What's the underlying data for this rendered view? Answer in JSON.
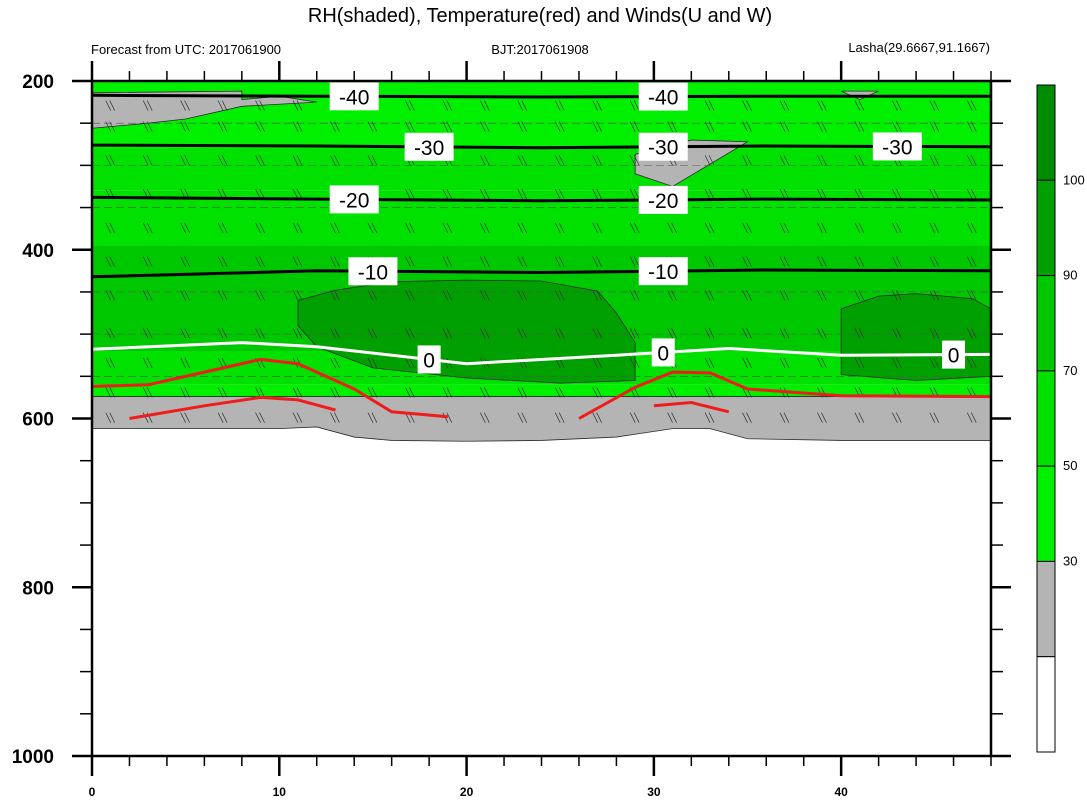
{
  "chart_data": {
    "type": "heatmap",
    "title": "RH(shaded), Temperature(red) and Winds(U and W)",
    "subtitle_left": "Forecast from UTC: 2017061900",
    "subtitle_center": "BJT:2017061908",
    "subtitle_right": "Lasha(29.6667,91.1667)",
    "x_ticks": [
      "0",
      "10",
      "20",
      "30",
      "40"
    ],
    "x_range": [
      0,
      48
    ],
    "y_ticks": [
      "200",
      "400",
      "600",
      "800",
      "1000"
    ],
    "y_range": [
      200,
      1000
    ],
    "y_reversed": true,
    "colorbar": {
      "ticks": [
        "30",
        "50",
        "70",
        "90",
        "100"
      ],
      "colors": [
        "#ffffff",
        "#b4b4b4",
        "#00f000",
        "#00e100",
        "#00c800",
        "#00a000",
        "#008c00"
      ]
    },
    "rh_regions": [
      {
        "name": "surface-gray",
        "color": "#b4b4b4",
        "points": [
          [
            0,
            612
          ],
          [
            10,
            612
          ],
          [
            12,
            610
          ],
          [
            14,
            622
          ],
          [
            16,
            626
          ],
          [
            20,
            627
          ],
          [
            24,
            626
          ],
          [
            28,
            622
          ],
          [
            31,
            612
          ],
          [
            33,
            612
          ],
          [
            35,
            624
          ],
          [
            40,
            626
          ],
          [
            48,
            626
          ],
          [
            48,
            574
          ],
          [
            0,
            574
          ]
        ]
      },
      {
        "name": "upper-gray-left",
        "color": "#b4b4b4",
        "points": [
          [
            0,
            214
          ],
          [
            8,
            212
          ],
          [
            8,
            222
          ],
          [
            10,
            218
          ],
          [
            12,
            225
          ],
          [
            8,
            230
          ],
          [
            5,
            245
          ],
          [
            3,
            250
          ],
          [
            0,
            256
          ]
        ]
      },
      {
        "name": "upper-gray-right",
        "color": "#b4b4b4",
        "points": [
          [
            29,
            287
          ],
          [
            32,
            270
          ],
          [
            35,
            272
          ],
          [
            31,
            325
          ],
          [
            29,
            310
          ]
        ]
      },
      {
        "name": "upper-gray-corner",
        "color": "#b4b4b4",
        "points": [
          [
            40,
            212
          ],
          [
            41,
            222
          ],
          [
            42,
            212
          ]
        ]
      },
      {
        "name": "dark-green-core",
        "color": "#00a000",
        "points": [
          [
            11,
            460
          ],
          [
            13,
            448
          ],
          [
            16,
            438
          ],
          [
            20,
            436
          ],
          [
            24,
            437
          ],
          [
            27,
            449
          ],
          [
            28,
            475
          ],
          [
            29,
            510
          ],
          [
            29,
            555
          ],
          [
            25,
            558
          ],
          [
            20,
            552
          ],
          [
            15,
            540
          ],
          [
            12,
            515
          ],
          [
            11,
            490
          ]
        ]
      },
      {
        "name": "dark-green-right",
        "color": "#00a000",
        "points": [
          [
            40,
            470
          ],
          [
            42,
            455
          ],
          [
            44,
            452
          ],
          [
            47,
            458
          ],
          [
            48,
            470
          ],
          [
            48,
            550
          ],
          [
            44,
            555
          ],
          [
            40,
            548
          ]
        ]
      }
    ],
    "temperature_contours": [
      {
        "label": "-40",
        "label_x": 14,
        "values": [
          [
            0,
            217
          ],
          [
            12,
            218
          ],
          [
            24,
            219
          ],
          [
            36,
            218
          ],
          [
            48,
            218
          ]
        ]
      },
      {
        "label": "-30",
        "label_x": 18,
        "values": [
          [
            0,
            276
          ],
          [
            12,
            277
          ],
          [
            24,
            279
          ],
          [
            36,
            277
          ],
          [
            48,
            278
          ]
        ]
      },
      {
        "label": "-20",
        "label_x": 14,
        "values": [
          [
            0,
            338
          ],
          [
            12,
            340
          ],
          [
            24,
            342
          ],
          [
            36,
            340
          ],
          [
            48,
            341
          ]
        ]
      },
      {
        "label": "-10",
        "label_x": 15,
        "values": [
          [
            0,
            432
          ],
          [
            12,
            425
          ],
          [
            24,
            427
          ],
          [
            36,
            424
          ],
          [
            48,
            425
          ]
        ]
      },
      {
        "label": "0",
        "label_x": 18,
        "values": [
          [
            0,
            518
          ],
          [
            8,
            510
          ],
          [
            12,
            515
          ],
          [
            20,
            535
          ],
          [
            28,
            525
          ],
          [
            34,
            517
          ],
          [
            40,
            525
          ],
          [
            48,
            524
          ]
        ]
      }
    ],
    "red_contours": [
      {
        "values": [
          [
            0,
            562
          ],
          [
            3,
            560
          ],
          [
            6,
            545
          ],
          [
            9,
            530
          ],
          [
            11,
            535
          ],
          [
            14,
            565
          ],
          [
            16,
            592
          ],
          [
            19,
            598
          ]
        ]
      },
      {
        "values": [
          [
            2,
            600
          ],
          [
            6,
            585
          ],
          [
            9,
            575
          ],
          [
            11,
            578
          ],
          [
            13,
            590
          ]
        ]
      },
      {
        "values": [
          [
            26,
            600
          ],
          [
            29,
            563
          ],
          [
            31,
            545
          ],
          [
            33,
            546
          ],
          [
            35,
            565
          ],
          [
            40,
            573
          ],
          [
            48,
            574
          ]
        ]
      },
      {
        "values": [
          [
            30,
            585
          ],
          [
            32,
            581
          ],
          [
            34,
            592
          ]
        ]
      }
    ]
  }
}
